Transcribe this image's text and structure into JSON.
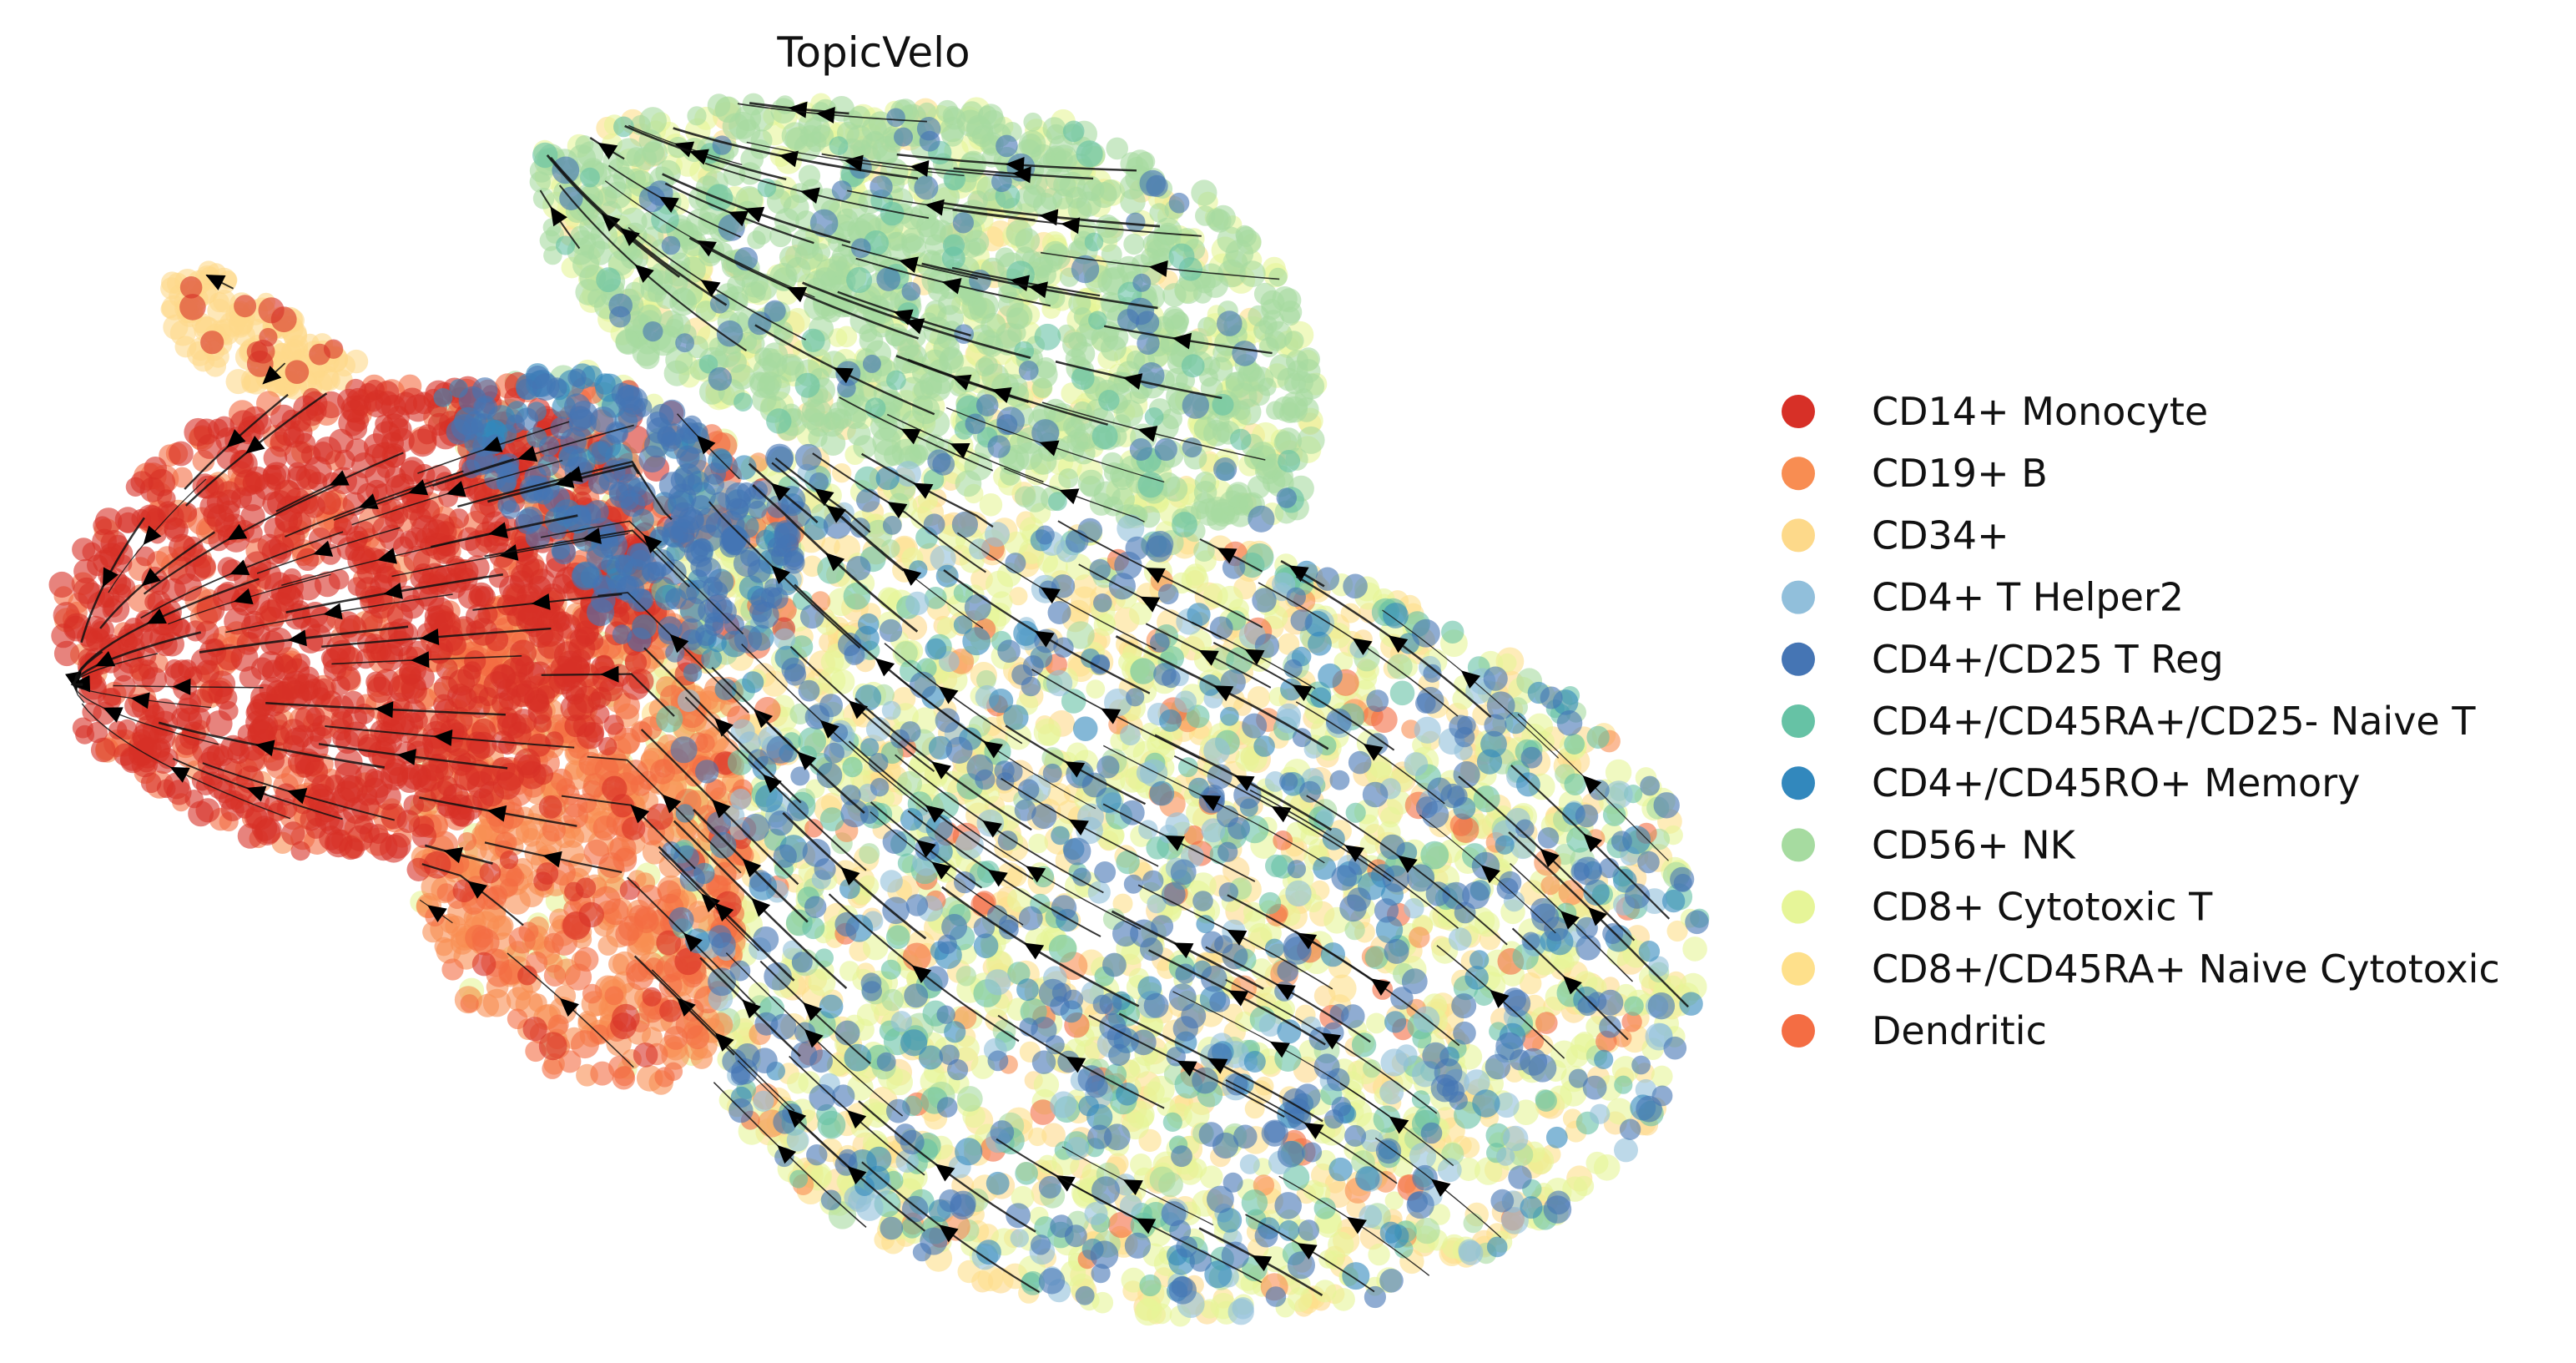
{
  "chart_data": {
    "type": "scatter",
    "subtype": "embedding scatter with RNA velocity streamlines",
    "title": "TopicVelo",
    "xlabel": "",
    "ylabel": "",
    "axes_visible": false,
    "grid": false,
    "legend_position": "right",
    "categories": [
      {
        "label": "CD14+ Monocyte",
        "color": "#d73027"
      },
      {
        "label": "CD19+ B",
        "color": "#f88d52"
      },
      {
        "label": "CD34+",
        "color": "#fdd98a"
      },
      {
        "label": "CD4+ T Helper2",
        "color": "#91bfdb"
      },
      {
        "label": "CD4+/CD25 T Reg",
        "color": "#4575b4"
      },
      {
        "label": "CD4+/CD45RA+/CD25- Naive T",
        "color": "#66c2a5"
      },
      {
        "label": "CD4+/CD45RO+ Memory",
        "color": "#3288bd"
      },
      {
        "label": "CD56+ NK",
        "color": "#a6dba0"
      },
      {
        "label": "CD8+ Cytotoxic T",
        "color": "#e6f598"
      },
      {
        "label": "CD8+/CD45RA+ Naive Cytotoxic",
        "color": "#fee08b"
      },
      {
        "label": "Dendritic",
        "color": "#f46d43"
      }
    ],
    "embedding_extent": {
      "x": [
        0,
        1
      ],
      "y": [
        0,
        1
      ]
    },
    "point_opacity": 0.6
  }
}
